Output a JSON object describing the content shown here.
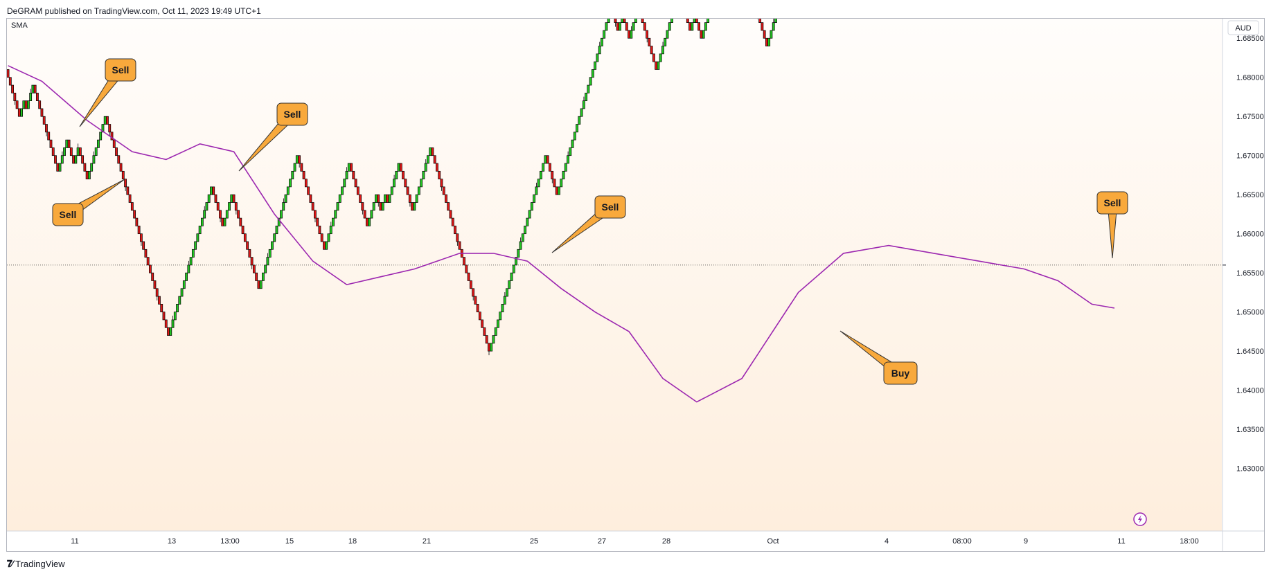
{
  "header": {
    "publisher": "DeGRAM published on TradingView.com, Oct 11, 2023 19:49 UTC+1"
  },
  "footer": {
    "brand": "TradingView"
  },
  "chart_data": {
    "type": "renko",
    "indicator_label": "SMA",
    "currency_label": "AUD",
    "current_price": 1.656,
    "y_ticks": [
      1.685,
      1.68,
      1.675,
      1.67,
      1.665,
      1.66,
      1.655,
      1.65,
      1.645,
      1.64,
      1.635,
      1.63
    ],
    "y_tick_labels": [
      "1.68500",
      "1.68000",
      "1.67500",
      "1.67000",
      "1.66500",
      "1.66000",
      "1.65500",
      "1.65000",
      "1.64500",
      "1.64000",
      "1.63500",
      "1.63000"
    ],
    "ylim": [
      1.622,
      1.6875
    ],
    "x_labels": [
      "11",
      "13",
      "13:00",
      "15",
      "18",
      "21",
      "25",
      "27",
      "28",
      "Oct",
      "4",
      "08:00",
      "9",
      "11",
      "18:00"
    ],
    "brick_size": 0.001,
    "bricks_start_close": 1.681,
    "bricks": "DDDDDDUUDUUUDDDDDDDDDDDUUUUDDDUUDDDDUUUUUUUUDDDDDDDDDDDDDDDDDDDDDDDDDDDDUUUUUUUUUUUUUUUUUUUDDDDDUUUUDDDDDDDDDDDDUUUUUUUUUUUUUUUUUDDDDDDDDDDDDUUUUUUUUUUUDDDDDDDDUUUUDDUUDUUUUUDDDDDDUUUUUUUUDDDDDDDDDDDDDDDDDDDDDDDDDDUUUUUUUUUUUUUUUUUUUUUUUUUDDDDDUUUUUUUUUUUUUUUUUUUUUUUUDDDUUDDDUUUUDDDDDDDDUUUUUUUUUUDDDDDUUDDDUUUUUUUUUUDUUUUDDDDDDDDDDDDDDUUUUUUUUUUDDDDDUUUUUUUU",
    "sma": {
      "name": "SMA",
      "points": [
        [
          0,
          1.6815
        ],
        [
          15,
          1.6795
        ],
        [
          35,
          1.6745
        ],
        [
          55,
          1.6705
        ],
        [
          70,
          1.6695
        ],
        [
          85,
          1.6715
        ],
        [
          100,
          1.6705
        ],
        [
          118,
          1.6625
        ],
        [
          135,
          1.6565
        ],
        [
          150,
          1.6535
        ],
        [
          165,
          1.6545
        ],
        [
          180,
          1.6555
        ],
        [
          200,
          1.6575
        ],
        [
          215,
          1.6575
        ],
        [
          230,
          1.6565
        ],
        [
          245,
          1.653
        ],
        [
          260,
          1.65
        ],
        [
          275,
          1.6475
        ],
        [
          290,
          1.6415
        ],
        [
          305,
          1.6385
        ],
        [
          325,
          1.6415
        ],
        [
          350,
          1.6525
        ],
        [
          370,
          1.6575
        ],
        [
          390,
          1.6585
        ],
        [
          410,
          1.6575
        ],
        [
          430,
          1.6565
        ],
        [
          450,
          1.6555
        ],
        [
          465,
          1.654
        ],
        [
          480,
          1.651
        ],
        [
          490,
          1.6505
        ]
      ]
    },
    "annotations": [
      {
        "label": "Sell"
      },
      {
        "label": "Sell"
      },
      {
        "label": "Sell"
      },
      {
        "label": "Sell"
      },
      {
        "label": "Sell"
      },
      {
        "label": "Buy"
      }
    ],
    "colors": {
      "up": "#22c722",
      "down": "#e01818",
      "sma": "#9c27b0",
      "callout": "#f8a93c",
      "bg_top": "#fffdfb",
      "bg_bottom": "#feeedd"
    }
  }
}
